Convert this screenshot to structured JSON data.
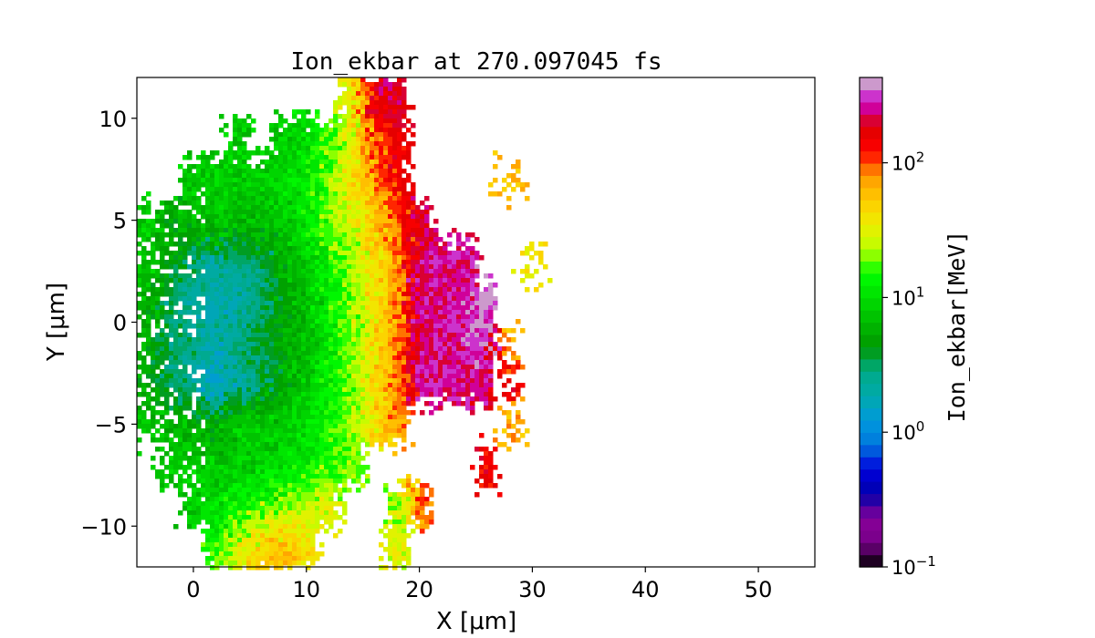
{
  "chart_data": {
    "type": "heatmap",
    "title": "Ion_ekbar at 270.097045 fs",
    "xlabel": "X [μm]",
    "ylabel": "Y [μm]",
    "xlim": [
      -5,
      55
    ],
    "ylim": [
      -12,
      12
    ],
    "xticks": [
      0,
      10,
      20,
      30,
      40,
      50
    ],
    "yticks": [
      -10,
      -5,
      0,
      5,
      10
    ],
    "xtick_labels": [
      "0",
      "10",
      "20",
      "30",
      "40",
      "50"
    ],
    "ytick_labels": [
      "−10",
      "−5",
      "0",
      "5",
      "10"
    ],
    "colormap": "nipy_spectral",
    "colorbar": {
      "label": "Ion_ekbar[MeV]",
      "scale": "log",
      "range": [
        0.1,
        430
      ],
      "levels": 40,
      "ticks": [
        {
          "value": 0.1,
          "base": "10",
          "exp": "−1"
        },
        {
          "value": 1,
          "base": "10",
          "exp": "0"
        },
        {
          "value": 10,
          "base": "10",
          "exp": "1"
        },
        {
          "value": 100,
          "base": "10",
          "exp": "2"
        }
      ]
    },
    "grid_x": [
      -4,
      -2,
      0,
      2,
      4,
      6,
      8,
      10,
      12,
      14,
      16,
      18,
      20,
      22,
      24,
      26,
      28,
      30,
      32
    ],
    "grid_y": [
      11,
      9,
      7,
      5,
      3,
      1,
      -1,
      -3,
      -5,
      -7,
      -9,
      -11
    ],
    "z_MeV": [
      [
        null,
        null,
        null,
        null,
        null,
        null,
        null,
        null,
        null,
        30,
        200,
        200,
        null,
        null,
        null,
        null,
        null,
        null,
        null
      ],
      [
        null,
        null,
        null,
        null,
        8,
        null,
        8,
        10,
        15,
        30,
        100,
        150,
        null,
        null,
        null,
        null,
        null,
        null,
        null
      ],
      [
        null,
        null,
        8,
        8,
        8,
        8,
        10,
        12,
        20,
        40,
        80,
        150,
        null,
        null,
        null,
        null,
        60,
        null,
        null
      ],
      [
        8,
        5,
        8,
        8,
        7,
        7,
        8,
        12,
        20,
        30,
        50,
        100,
        200,
        null,
        null,
        null,
        null,
        null,
        null
      ],
      [
        8,
        5,
        3,
        2,
        3,
        3,
        6,
        8,
        15,
        20,
        40,
        80,
        250,
        250,
        250,
        null,
        null,
        40,
        null
      ],
      [
        6,
        3,
        2,
        2,
        2,
        3,
        5,
        7,
        12,
        20,
        40,
        80,
        250,
        250,
        280,
        380,
        null,
        null,
        null
      ],
      [
        6,
        3,
        3,
        2,
        3,
        4,
        5,
        7,
        12,
        20,
        40,
        80,
        250,
        250,
        280,
        380,
        60,
        null,
        null
      ],
      [
        5,
        3,
        2,
        1.5,
        2,
        3,
        5,
        8,
        12,
        20,
        40,
        80,
        250,
        250,
        250,
        200,
        150,
        null,
        null
      ],
      [
        8,
        6,
        6,
        5,
        8,
        8,
        8,
        10,
        15,
        20,
        40,
        80,
        null,
        null,
        null,
        null,
        60,
        null,
        null
      ],
      [
        null,
        8,
        8,
        8,
        8,
        8,
        10,
        12,
        15,
        20,
        null,
        null,
        null,
        null,
        null,
        150,
        null,
        null,
        null
      ],
      [
        null,
        null,
        8,
        10,
        15,
        15,
        20,
        25,
        30,
        null,
        null,
        20,
        100,
        null,
        null,
        null,
        null,
        null,
        null
      ],
      [
        null,
        null,
        null,
        15,
        30,
        50,
        60,
        40,
        null,
        null,
        null,
        30,
        null,
        null,
        null,
        null,
        null,
        null,
        null
      ]
    ]
  }
}
